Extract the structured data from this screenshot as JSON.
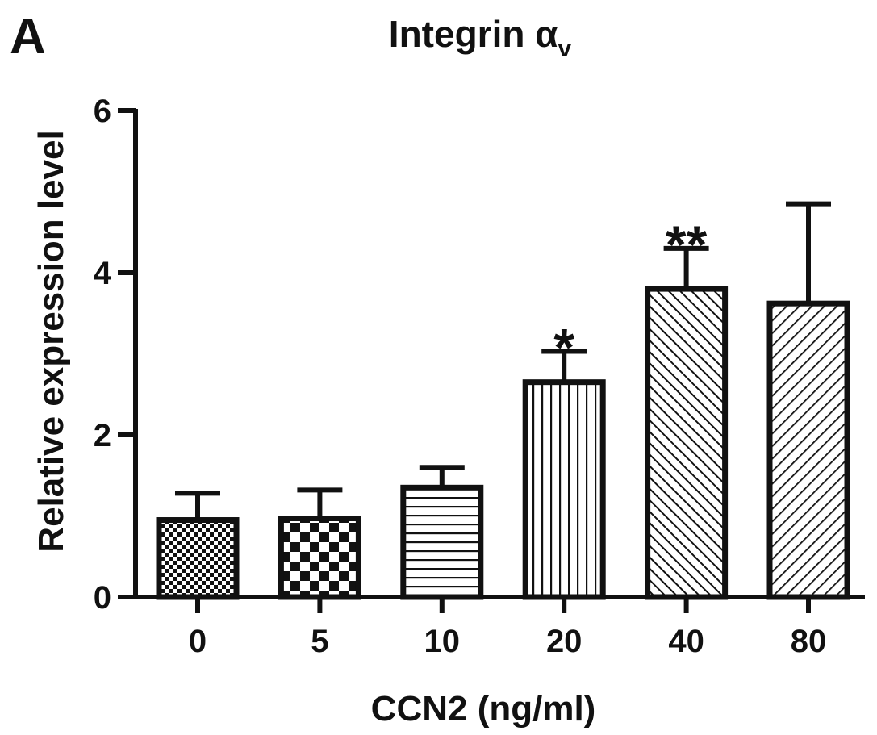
{
  "panel_label": "A",
  "chart_data": {
    "type": "bar",
    "title": {
      "main": "Integrin α",
      "subscript": "v"
    },
    "xlabel": "CCN2 (ng/ml)",
    "ylabel": "Relative expression level",
    "ylim": [
      0,
      6
    ],
    "yticks": [
      "0",
      "2",
      "4",
      "6"
    ],
    "categories": [
      "0",
      "5",
      "10",
      "20",
      "40",
      "80"
    ],
    "values": [
      0.95,
      0.97,
      1.35,
      2.65,
      3.8,
      3.62
    ],
    "errors": [
      0.33,
      0.35,
      0.25,
      0.38,
      0.5,
      1.23
    ],
    "significance": [
      "",
      "",
      "",
      "*",
      "**",
      ""
    ],
    "patterns": [
      "fine-checker",
      "checker",
      "horizontal-lines",
      "vertical-lines",
      "diagonal-dense",
      "diagonal-sparse"
    ],
    "grid": false,
    "legend": "none"
  }
}
